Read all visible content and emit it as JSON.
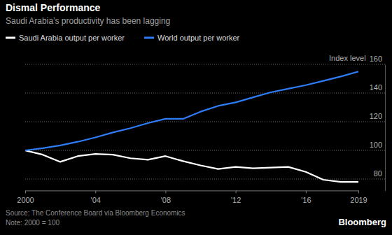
{
  "chart_data": {
    "type": "line",
    "title": "Dismal Performance",
    "subtitle": "Saudi Arabia’s productivity has been lagging",
    "ylabel": "Index level",
    "source": "Source: The Conference Board via Bloomberg Economics",
    "note": "Note: 2000 = 100",
    "credit": "Bloomberg",
    "x": [
      2000,
      2001,
      2002,
      2003,
      2004,
      2005,
      2006,
      2007,
      2008,
      2009,
      2010,
      2011,
      2012,
      2013,
      2014,
      2015,
      2016,
      2017,
      2018,
      2019
    ],
    "series": [
      {
        "name": "Saudi Arabia output per worker",
        "color": "#ffffff",
        "values": [
          100,
          97,
          92,
          96,
          97.5,
          97,
          94.5,
          93.5,
          96,
          92.5,
          89.5,
          87,
          88.5,
          87.5,
          88,
          88.5,
          85,
          79.5,
          78,
          78
        ]
      },
      {
        "name": "World output per worker",
        "color": "#2e7cf6",
        "values": [
          100,
          101.5,
          103.5,
          106,
          109,
          112.5,
          115.5,
          119,
          122,
          122,
          127,
          131,
          133.5,
          137,
          140.5,
          143,
          145.5,
          148.5,
          151.5,
          155
        ]
      }
    ],
    "xlim": [
      2000,
      2019
    ],
    "xticks": [
      {
        "value": 2000,
        "label": "2000"
      },
      {
        "value": 2004,
        "label": "'04"
      },
      {
        "value": 2008,
        "label": "'08"
      },
      {
        "value": 2012,
        "label": "'12"
      },
      {
        "value": 2016,
        "label": "'16"
      },
      {
        "value": 2019,
        "label": "2019"
      }
    ],
    "ylim": [
      72,
      160
    ],
    "yticks": [
      80,
      100,
      120,
      140,
      160
    ],
    "grid": true,
    "legend": "top-left"
  }
}
